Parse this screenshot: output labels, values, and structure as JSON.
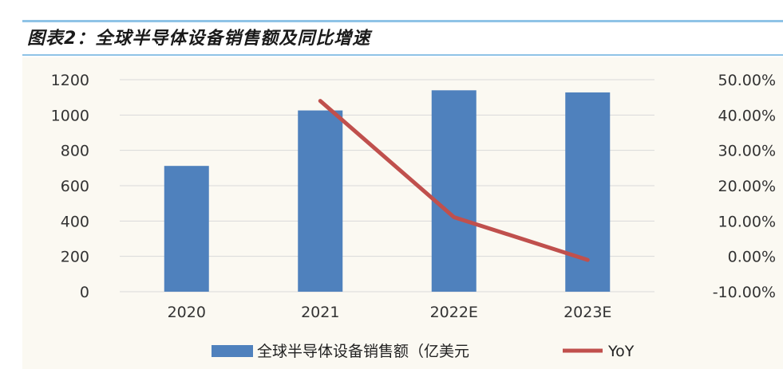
{
  "title": "图表2：全球半导体设备销售额及同比增速",
  "chart_data": {
    "type": "bar",
    "categories": [
      "2020",
      "2021",
      "2022E",
      "2023E"
    ],
    "series": [
      {
        "name": "全球半导体设备销售额（亿美元",
        "type": "bar",
        "axis": "left",
        "color": "#4f81bd",
        "values": [
          712,
          1026,
          1140,
          1128
        ]
      },
      {
        "name": "YoY",
        "type": "line",
        "axis": "right",
        "color": "#c0504d",
        "values": [
          null,
          44.0,
          11.1,
          -1.0
        ]
      }
    ],
    "y_left": {
      "ylim": [
        0,
        1200
      ],
      "ticks": [
        "1200",
        "1000",
        "800",
        "600",
        "400",
        "200",
        "0"
      ]
    },
    "y_right": {
      "ylim": [
        -10,
        50
      ],
      "ticks": [
        "50.00%",
        "40.00%",
        "30.00%",
        "20.00%",
        "10.00%",
        "0.00%",
        "-10.00%"
      ]
    },
    "grid": true,
    "legend_position": "bottom"
  }
}
